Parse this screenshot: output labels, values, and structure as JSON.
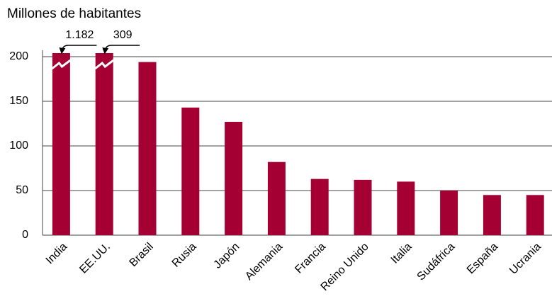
{
  "chart_data": {
    "type": "bar",
    "title": "Millones de habitantes",
    "categories": [
      "India",
      "EE.UU.",
      "Brasil",
      "Rusia",
      "Japón",
      "Alemania",
      "Francia",
      "Reino Unido",
      "Italia",
      "Sudáfrica",
      "España",
      "Ucrania"
    ],
    "values": [
      1182,
      309,
      194,
      143,
      127,
      82,
      63,
      62,
      60,
      50,
      45,
      45
    ],
    "value_labels": [
      "1.182",
      "309",
      null,
      null,
      null,
      null,
      null,
      null,
      null,
      null,
      null,
      null
    ],
    "color": "#a50034",
    "ylim": [
      0,
      205
    ],
    "yticks": [
      0,
      50,
      100,
      150,
      200
    ],
    "grid": true
  }
}
